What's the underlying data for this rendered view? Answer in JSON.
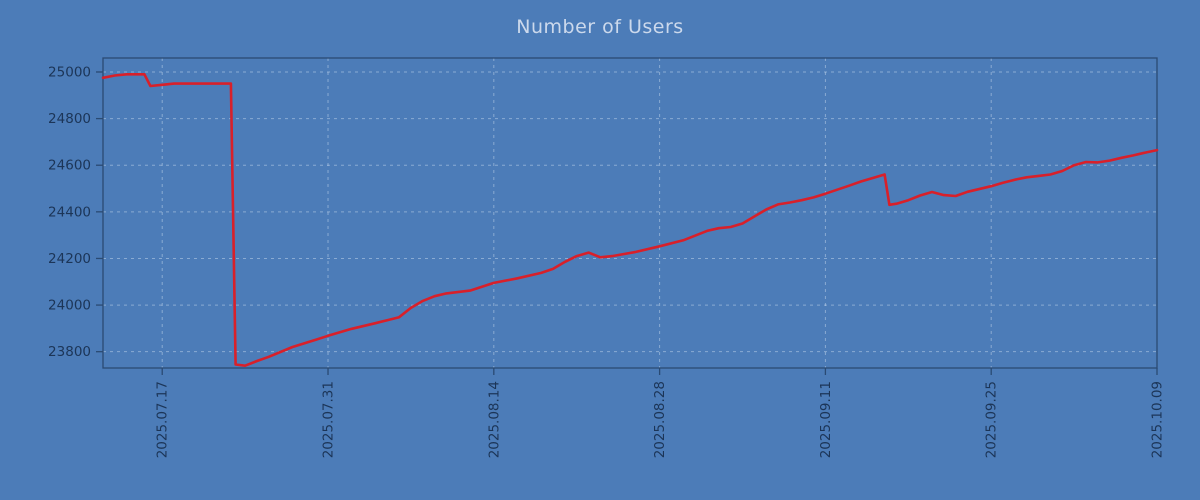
{
  "title": "Number of Users",
  "colors": {
    "background": "#4c7cb8",
    "line": "#d8202a",
    "grid": "#d7e4f5",
    "frame": "#2a4a73",
    "tick_label": "#1c3557",
    "title": "#ccd9ec"
  },
  "chart_data": {
    "type": "line",
    "title": "Number of Users",
    "xlabel": "",
    "ylabel": "",
    "grid": true,
    "legend": "none",
    "xlim": [
      0,
      89
    ],
    "ylim": [
      23730,
      25060
    ],
    "y_ticks": [
      23800,
      24000,
      24200,
      24400,
      24600,
      24800,
      25000
    ],
    "x_ticks": [
      {
        "day": 5,
        "label": "2025.07.17"
      },
      {
        "day": 19,
        "label": "2025.07.31"
      },
      {
        "day": 33,
        "label": "2025.08.14"
      },
      {
        "day": 47,
        "label": "2025.08.28"
      },
      {
        "day": 61,
        "label": "2025.09.11"
      },
      {
        "day": 75,
        "label": "2025.09.25"
      },
      {
        "day": 89,
        "label": "2025.10.09"
      }
    ],
    "series": [
      {
        "name": "Number of Users",
        "color": "#d8202a",
        "points": [
          [
            0,
            24975
          ],
          [
            1,
            24985
          ],
          [
            2,
            24990
          ],
          [
            3.5,
            24990
          ],
          [
            4,
            24940
          ],
          [
            5,
            24945
          ],
          [
            6,
            24950
          ],
          [
            10.8,
            24950
          ],
          [
            11.2,
            23745
          ],
          [
            12,
            23740
          ],
          [
            13,
            23760
          ],
          [
            14,
            23778
          ],
          [
            16,
            23820
          ],
          [
            18,
            23852
          ],
          [
            19,
            23868
          ],
          [
            21,
            23898
          ],
          [
            23,
            23922
          ],
          [
            24,
            23935
          ],
          [
            25,
            23948
          ],
          [
            26,
            23988
          ],
          [
            27,
            24018
          ],
          [
            28,
            24038
          ],
          [
            29,
            24050
          ],
          [
            31,
            24062
          ],
          [
            33,
            24095
          ],
          [
            35,
            24115
          ],
          [
            37,
            24138
          ],
          [
            38,
            24155
          ],
          [
            39,
            24185
          ],
          [
            40,
            24210
          ],
          [
            41,
            24225
          ],
          [
            42,
            24205
          ],
          [
            43,
            24210
          ],
          [
            45,
            24228
          ],
          [
            47,
            24252
          ],
          [
            49,
            24278
          ],
          [
            51,
            24318
          ],
          [
            52,
            24330
          ],
          [
            53,
            24335
          ],
          [
            54,
            24350
          ],
          [
            55,
            24380
          ],
          [
            56,
            24410
          ],
          [
            57,
            24432
          ],
          [
            58,
            24440
          ],
          [
            59,
            24450
          ],
          [
            60,
            24462
          ],
          [
            61,
            24478
          ],
          [
            62,
            24495
          ],
          [
            63,
            24512
          ],
          [
            64,
            24530
          ],
          [
            65,
            24545
          ],
          [
            66,
            24560
          ],
          [
            66.4,
            24430
          ],
          [
            67,
            24435
          ],
          [
            68,
            24450
          ],
          [
            69,
            24470
          ],
          [
            70,
            24485
          ],
          [
            71,
            24472
          ],
          [
            72,
            24468
          ],
          [
            73,
            24486
          ],
          [
            75,
            24510
          ],
          [
            76,
            24525
          ],
          [
            77,
            24538
          ],
          [
            78,
            24548
          ],
          [
            79,
            24554
          ],
          [
            80,
            24560
          ],
          [
            81,
            24575
          ],
          [
            82,
            24600
          ],
          [
            83,
            24614
          ],
          [
            84,
            24612
          ],
          [
            85,
            24620
          ],
          [
            86,
            24632
          ],
          [
            87,
            24642
          ],
          [
            88,
            24654
          ],
          [
            89,
            24665
          ]
        ]
      }
    ]
  }
}
